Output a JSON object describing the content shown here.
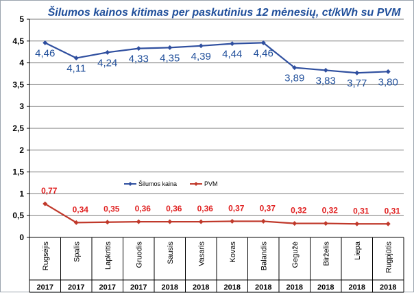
{
  "chart_data": {
    "type": "line",
    "title": "Šilumos kainos kitimas per paskutinius 12 mėnesių, ct/kWh su PVM",
    "categories": [
      "Rugsėjis",
      "Spalis",
      "Lapkritis",
      "Gruodis",
      "Sausis",
      "Vasaris",
      "Kovas",
      "Balandis",
      "Gegužė",
      "Birželis",
      "Liepa",
      "Rugpjūtis"
    ],
    "years": [
      "2017",
      "2017",
      "2017",
      "2017",
      "2018",
      "2018",
      "2018",
      "2018",
      "2018",
      "2018",
      "2018",
      "2018"
    ],
    "ylim": [
      0,
      5
    ],
    "yticks": [
      "0",
      "0,5",
      "1",
      "1,5",
      "2",
      "2,5",
      "3",
      "3,5",
      "4",
      "4,5",
      "5"
    ],
    "grid": true,
    "legend_position": "middle-left",
    "series": [
      {
        "name": "Šilumos kaina",
        "color": "#2f4f9f",
        "values": [
          4.46,
          4.11,
          4.24,
          4.33,
          4.35,
          4.39,
          4.44,
          4.46,
          3.89,
          3.83,
          3.77,
          3.8
        ],
        "labels": [
          "4,46",
          "4,11",
          "4,24",
          "4,33",
          "4,35",
          "4,39",
          "4,44",
          "4,46",
          "3,89",
          "3,83",
          "3,77",
          "3,80"
        ]
      },
      {
        "name": "PVM",
        "color": "#c0392b",
        "values": [
          0.77,
          0.34,
          0.35,
          0.36,
          0.36,
          0.36,
          0.37,
          0.37,
          0.32,
          0.32,
          0.31,
          0.31
        ],
        "labels": [
          "0,77",
          "0,34",
          "0,35",
          "0,36",
          "0,36",
          "0,36",
          "0,37",
          "0,37",
          "0,32",
          "0,32",
          "0,31",
          "0,31"
        ]
      }
    ]
  }
}
